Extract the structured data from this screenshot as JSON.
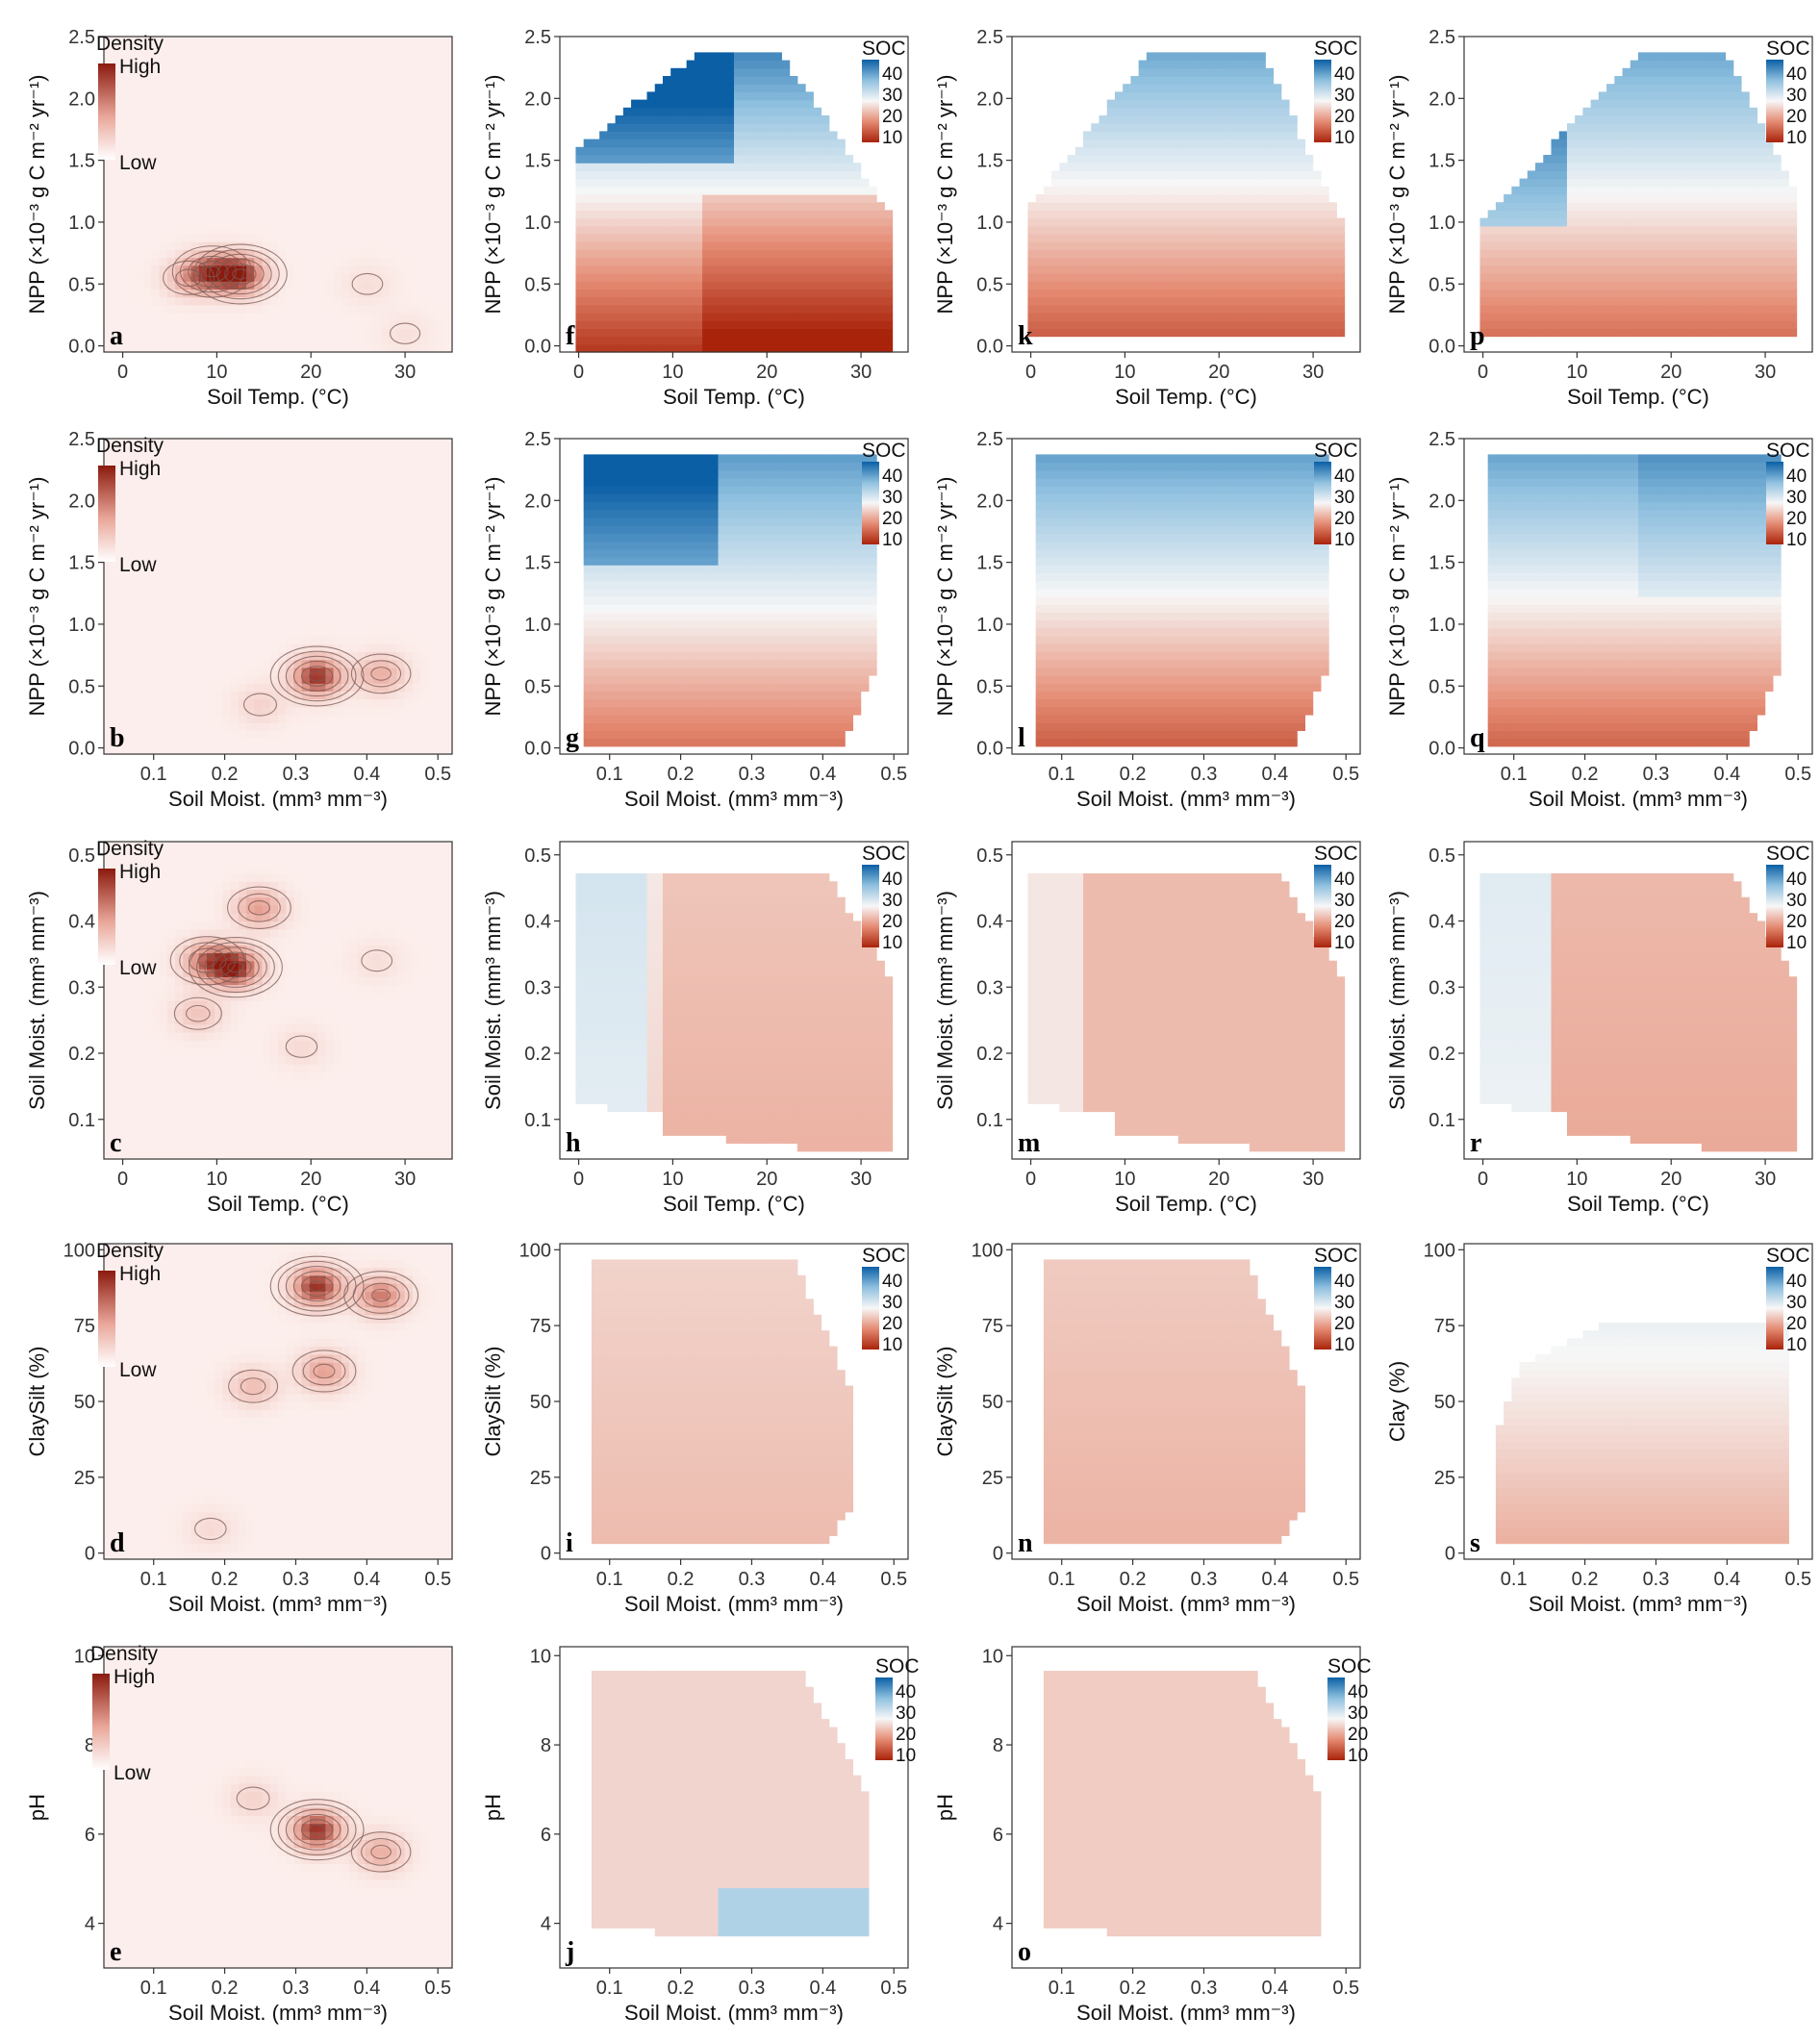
{
  "colors": {
    "density_high": "#8b1a0e",
    "density_mid": "#e9a699",
    "density_low": "#fdf3f1",
    "soc_high": "#0b5fa5",
    "soc_mid_high": "#8fc0df",
    "soc_mid": "#f7f7f7",
    "soc_mid_low": "#e58b73",
    "soc_low": "#a8230a",
    "contour": "#7a5a55",
    "frame": "#333333"
  },
  "legends": {
    "density_title": "Density",
    "density_high": "High",
    "density_low": "Low",
    "soc_title": "SOC",
    "soc_ticks": [
      "40",
      "30",
      "20",
      "10"
    ]
  },
  "axes": {
    "soil_temp": "Soil Temp. (°C)",
    "npp": "NPP (×10⁻³ g C m⁻² yr⁻¹)",
    "soil_moist": "Soil Moist. (mm³ mm⁻³)",
    "clay_silt": "ClaySilt (%)",
    "clay": "Clay (%)",
    "ph": "pH"
  },
  "chart_data": [
    {
      "letter": "a",
      "type": "heatmap",
      "kind": "density",
      "xlabel_key": "soil_temp",
      "ylabel_key": "npp",
      "xlim": [
        -2,
        35
      ],
      "ylim": [
        -0.05,
        2.5
      ],
      "xticks": [
        "0",
        "10",
        "20",
        "30"
      ],
      "yticks": [
        "0.0",
        "0.5",
        "1.0",
        "1.5",
        "2.0",
        "2.5"
      ],
      "peaks": [
        {
          "x": 12.5,
          "y": 0.58,
          "w": 1.0
        },
        {
          "x": 9.5,
          "y": 0.6,
          "w": 0.75
        },
        {
          "x": 7,
          "y": 0.55,
          "w": 0.4
        },
        {
          "x": 26,
          "y": 0.5,
          "w": 0.12
        },
        {
          "x": 30,
          "y": 0.1,
          "w": 0.1
        }
      ]
    },
    {
      "letter": "f",
      "type": "heatmap",
      "kind": "soc",
      "xlabel_key": "soil_temp",
      "ylabel_key": "npp",
      "xlim": [
        -2,
        35
      ],
      "ylim": [
        -0.05,
        2.5
      ],
      "xticks": [
        "0",
        "10",
        "20",
        "30"
      ],
      "yticks": [
        "0.0",
        "0.5",
        "1.0",
        "1.5",
        "2.0",
        "2.5"
      ]
    },
    {
      "letter": "k",
      "type": "heatmap",
      "kind": "soc",
      "xlabel_key": "soil_temp",
      "ylabel_key": "npp",
      "xlim": [
        -2,
        35
      ],
      "ylim": [
        -0.05,
        2.5
      ],
      "xticks": [
        "0",
        "10",
        "20",
        "30"
      ],
      "yticks": [
        "0.0",
        "0.5",
        "1.0",
        "1.5",
        "2.0",
        "2.5"
      ]
    },
    {
      "letter": "p",
      "type": "heatmap",
      "kind": "soc",
      "xlabel_key": "soil_temp",
      "ylabel_key": "npp",
      "xlim": [
        -2,
        35
      ],
      "ylim": [
        -0.05,
        2.5
      ],
      "xticks": [
        "0",
        "10",
        "20",
        "30"
      ],
      "yticks": [
        "0.0",
        "0.5",
        "1.0",
        "1.5",
        "2.0",
        "2.5"
      ]
    },
    {
      "letter": "b",
      "type": "heatmap",
      "kind": "density",
      "xlabel_key": "soil_moist",
      "ylabel_key": "npp",
      "xlim": [
        0.03,
        0.52
      ],
      "ylim": [
        -0.05,
        2.5
      ],
      "xticks": [
        "0.1",
        "0.2",
        "0.3",
        "0.4",
        "0.5"
      ],
      "yticks": [
        "0.0",
        "0.5",
        "1.0",
        "1.5",
        "2.0",
        "2.5"
      ],
      "peaks": [
        {
          "x": 0.33,
          "y": 0.58,
          "w": 1.0
        },
        {
          "x": 0.42,
          "y": 0.6,
          "w": 0.45
        },
        {
          "x": 0.25,
          "y": 0.35,
          "w": 0.2
        }
      ]
    },
    {
      "letter": "g",
      "type": "heatmap",
      "kind": "soc",
      "xlabel_key": "soil_moist",
      "ylabel_key": "npp",
      "xlim": [
        0.03,
        0.52
      ],
      "ylim": [
        -0.05,
        2.5
      ],
      "xticks": [
        "0.1",
        "0.2",
        "0.3",
        "0.4",
        "0.5"
      ],
      "yticks": [
        "0.0",
        "0.5",
        "1.0",
        "1.5",
        "2.0",
        "2.5"
      ]
    },
    {
      "letter": "l",
      "type": "heatmap",
      "kind": "soc",
      "xlabel_key": "soil_moist",
      "ylabel_key": "npp",
      "xlim": [
        0.03,
        0.52
      ],
      "ylim": [
        -0.05,
        2.5
      ],
      "xticks": [
        "0.1",
        "0.2",
        "0.3",
        "0.4",
        "0.5"
      ],
      "yticks": [
        "0.0",
        "0.5",
        "1.0",
        "1.5",
        "2.0",
        "2.5"
      ]
    },
    {
      "letter": "q",
      "type": "heatmap",
      "kind": "soc",
      "xlabel_key": "soil_moist",
      "ylabel_key": "npp",
      "xlim": [
        0.03,
        0.52
      ],
      "ylim": [
        -0.05,
        2.5
      ],
      "xticks": [
        "0.1",
        "0.2",
        "0.3",
        "0.4",
        "0.5"
      ],
      "yticks": [
        "0.0",
        "0.5",
        "1.0",
        "1.5",
        "2.0",
        "2.5"
      ]
    },
    {
      "letter": "c",
      "type": "heatmap",
      "kind": "density",
      "xlabel_key": "soil_temp",
      "ylabel_key": "soil_moist",
      "xlim": [
        -2,
        35
      ],
      "ylim": [
        0.04,
        0.52
      ],
      "xticks": [
        "0",
        "10",
        "20",
        "30"
      ],
      "yticks": [
        "0.1",
        "0.2",
        "0.3",
        "0.4",
        "0.5"
      ],
      "peaks": [
        {
          "x": 12,
          "y": 0.33,
          "w": 1.0
        },
        {
          "x": 9,
          "y": 0.34,
          "w": 0.7
        },
        {
          "x": 14.5,
          "y": 0.42,
          "w": 0.55
        },
        {
          "x": 8,
          "y": 0.26,
          "w": 0.3
        },
        {
          "x": 19,
          "y": 0.21,
          "w": 0.15
        },
        {
          "x": 27,
          "y": 0.34,
          "w": 0.12
        }
      ]
    },
    {
      "letter": "h",
      "type": "heatmap",
      "kind": "soc",
      "xlabel_key": "soil_temp",
      "ylabel_key": "soil_moist",
      "xlim": [
        -2,
        35
      ],
      "ylim": [
        0.04,
        0.52
      ],
      "xticks": [
        "0",
        "10",
        "20",
        "30"
      ],
      "yticks": [
        "0.1",
        "0.2",
        "0.3",
        "0.4",
        "0.5"
      ]
    },
    {
      "letter": "m",
      "type": "heatmap",
      "kind": "soc",
      "xlabel_key": "soil_temp",
      "ylabel_key": "soil_moist",
      "xlim": [
        -2,
        35
      ],
      "ylim": [
        0.04,
        0.52
      ],
      "xticks": [
        "0",
        "10",
        "20",
        "30"
      ],
      "yticks": [
        "0.1",
        "0.2",
        "0.3",
        "0.4",
        "0.5"
      ]
    },
    {
      "letter": "r",
      "type": "heatmap",
      "kind": "soc",
      "xlabel_key": "soil_temp",
      "ylabel_key": "soil_moist",
      "xlim": [
        -2,
        35
      ],
      "ylim": [
        0.04,
        0.52
      ],
      "xticks": [
        "0",
        "10",
        "20",
        "30"
      ],
      "yticks": [
        "0.1",
        "0.2",
        "0.3",
        "0.4",
        "0.5"
      ]
    },
    {
      "letter": "d",
      "type": "heatmap",
      "kind": "density",
      "xlabel_key": "soil_moist",
      "ylabel_key": "clay_silt",
      "xlim": [
        0.03,
        0.52
      ],
      "ylim": [
        -2,
        102
      ],
      "xticks": [
        "0.1",
        "0.2",
        "0.3",
        "0.4",
        "0.5"
      ],
      "yticks": [
        "0",
        "25",
        "50",
        "75",
        "100"
      ],
      "peaks": [
        {
          "x": 0.33,
          "y": 88,
          "w": 1.0
        },
        {
          "x": 0.42,
          "y": 85,
          "w": 0.7
        },
        {
          "x": 0.34,
          "y": 60,
          "w": 0.55
        },
        {
          "x": 0.24,
          "y": 55,
          "w": 0.35
        },
        {
          "x": 0.18,
          "y": 8,
          "w": 0.15
        }
      ]
    },
    {
      "letter": "i",
      "type": "heatmap",
      "kind": "soc",
      "xlabel_key": "soil_moist",
      "ylabel_key": "clay_silt",
      "xlim": [
        0.03,
        0.52
      ],
      "ylim": [
        -2,
        102
      ],
      "xticks": [
        "0.1",
        "0.2",
        "0.3",
        "0.4",
        "0.5"
      ],
      "yticks": [
        "0",
        "25",
        "50",
        "75",
        "100"
      ]
    },
    {
      "letter": "n",
      "type": "heatmap",
      "kind": "soc",
      "xlabel_key": "soil_moist",
      "ylabel_key": "clay_silt",
      "xlim": [
        0.03,
        0.52
      ],
      "ylim": [
        -2,
        102
      ],
      "xticks": [
        "0.1",
        "0.2",
        "0.3",
        "0.4",
        "0.5"
      ],
      "yticks": [
        "0",
        "25",
        "50",
        "75",
        "100"
      ]
    },
    {
      "letter": "s",
      "type": "heatmap",
      "kind": "soc",
      "xlabel_key": "soil_moist",
      "ylabel_key": "clay",
      "xlim": [
        0.03,
        0.52
      ],
      "ylim": [
        -2,
        102
      ],
      "xticks": [
        "0.1",
        "0.2",
        "0.3",
        "0.4",
        "0.5"
      ],
      "yticks": [
        "0",
        "25",
        "50",
        "75",
        "100"
      ]
    },
    {
      "letter": "e",
      "type": "heatmap",
      "kind": "density",
      "xlabel_key": "soil_moist",
      "ylabel_key": "ph",
      "xlim": [
        0.03,
        0.52
      ],
      "ylim": [
        3.0,
        10.2
      ],
      "xticks": [
        "0.1",
        "0.2",
        "0.3",
        "0.4",
        "0.5"
      ],
      "yticks": [
        "4",
        "6",
        "8",
        "10"
      ],
      "peaks": [
        {
          "x": 0.33,
          "y": 6.1,
          "w": 1.0
        },
        {
          "x": 0.42,
          "y": 5.6,
          "w": 0.45
        },
        {
          "x": 0.24,
          "y": 6.8,
          "w": 0.2
        }
      ]
    },
    {
      "letter": "j",
      "type": "heatmap",
      "kind": "soc",
      "xlabel_key": "soil_moist",
      "ylabel_key": "ph",
      "xlim": [
        0.03,
        0.52
      ],
      "ylim": [
        3.0,
        10.2
      ],
      "xticks": [
        "0.1",
        "0.2",
        "0.3",
        "0.4",
        "0.5"
      ],
      "yticks": [
        "4",
        "6",
        "8",
        "10"
      ]
    },
    {
      "letter": "o",
      "type": "heatmap",
      "kind": "soc",
      "xlabel_key": "soil_moist",
      "ylabel_key": "ph",
      "xlim": [
        0.03,
        0.52
      ],
      "ylim": [
        3.0,
        10.2
      ],
      "xticks": [
        "0.1",
        "0.2",
        "0.3",
        "0.4",
        "0.5"
      ],
      "yticks": [
        "4",
        "6",
        "8",
        "10"
      ]
    }
  ]
}
